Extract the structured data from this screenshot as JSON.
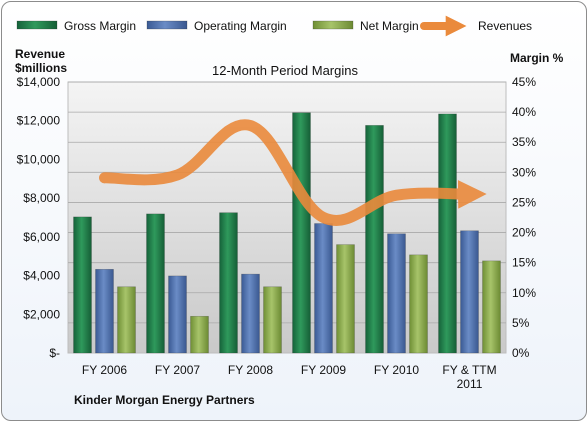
{
  "chart_data": {
    "type": "bar",
    "title": "12-Month Period Margins",
    "company": "Kinder Morgan Energy Partners",
    "left_axis": {
      "label_line1": "Revenue",
      "label_line2": "$millions",
      "min": 0,
      "max": 14000,
      "step": 2000,
      "ticks": [
        "$-",
        "$2,000",
        "$4,000",
        "$6,000",
        "$8,000",
        "$10,000",
        "$12,000",
        "$14,000"
      ]
    },
    "right_axis": {
      "label": "Margin %",
      "min": 0,
      "max": 45,
      "step": 5,
      "ticks": [
        "0%",
        "5%",
        "10%",
        "15%",
        "20%",
        "25%",
        "30%",
        "35%",
        "40%",
        "45%"
      ]
    },
    "categories": [
      "FY 2006",
      "FY 2007",
      "FY 2008",
      "FY 2009",
      "FY 2010",
      "FY & TTM 2011"
    ],
    "category_lines": [
      [
        "FY 2006"
      ],
      [
        "FY 2007"
      ],
      [
        "FY 2008"
      ],
      [
        "FY 2009"
      ],
      [
        "FY 2010"
      ],
      [
        "FY & TTM",
        "2011"
      ]
    ],
    "series": [
      {
        "name": "Gross Margin",
        "type": "bar",
        "axis": "right",
        "color": "#1f7a45",
        "values": [
          22.6,
          23.1,
          23.3,
          39.9,
          37.8,
          39.7
        ]
      },
      {
        "name": "Operating Margin",
        "type": "bar",
        "axis": "right",
        "color": "#4f6fa8",
        "values": [
          13.9,
          12.8,
          13.1,
          21.5,
          19.8,
          20.3
        ]
      },
      {
        "name": "Net Margin",
        "type": "bar",
        "axis": "right",
        "color": "#8aa84a",
        "values": [
          11.0,
          6.1,
          11.0,
          18.0,
          16.3,
          15.3
        ]
      },
      {
        "name": "Revenues",
        "type": "line",
        "axis": "left",
        "color": "#ea8a3c",
        "values": [
          9050,
          9200,
          11750,
          7000,
          8150,
          8200
        ]
      }
    ],
    "grid": true,
    "legend_position": "top"
  }
}
